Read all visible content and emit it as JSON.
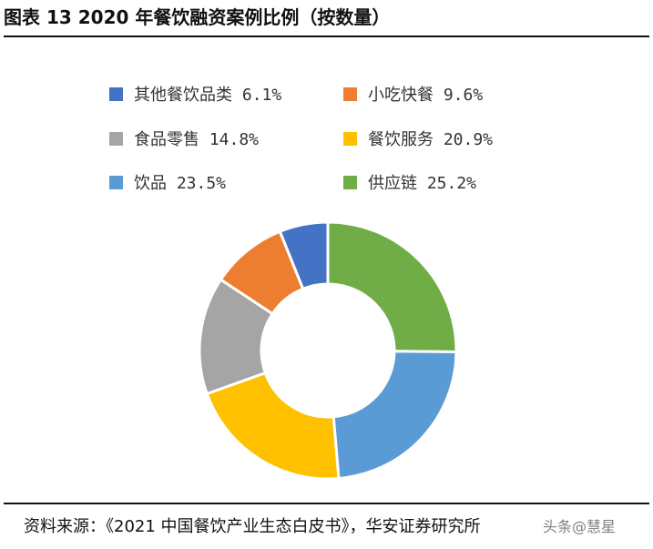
{
  "header": {
    "title": "图表 13 2020 年餐饮融资案例比例（按数量）"
  },
  "footer": {
    "source": "资料来源：《2021 中国餐饮产业生态白皮书》，华安证券研究所",
    "watermark": "头条@慧星"
  },
  "chart_data": {
    "type": "pie",
    "donut": true,
    "title": "",
    "legend_position": "top",
    "unit": "%",
    "slices": [
      {
        "name": "供应链",
        "value": 25.2,
        "color": "#70ad47",
        "label": "供应链 25.2%"
      },
      {
        "name": "饮品",
        "value": 23.5,
        "color": "#5b9bd5",
        "label": "饮品 23.5%"
      },
      {
        "name": "餐饮服务",
        "value": 20.9,
        "color": "#ffc000",
        "label": "餐饮服务 20.9%"
      },
      {
        "name": "食品零售",
        "value": 14.8,
        "color": "#a5a5a5",
        "label": "食品零售 14.8%"
      },
      {
        "name": "小吃快餐",
        "value": 9.6,
        "color": "#ed7d31",
        "label": "小吃快餐 9.6%"
      },
      {
        "name": "其他餐饮品类",
        "value": 6.1,
        "color": "#4472c4",
        "label": "其他餐饮品类 6.1%"
      }
    ]
  }
}
